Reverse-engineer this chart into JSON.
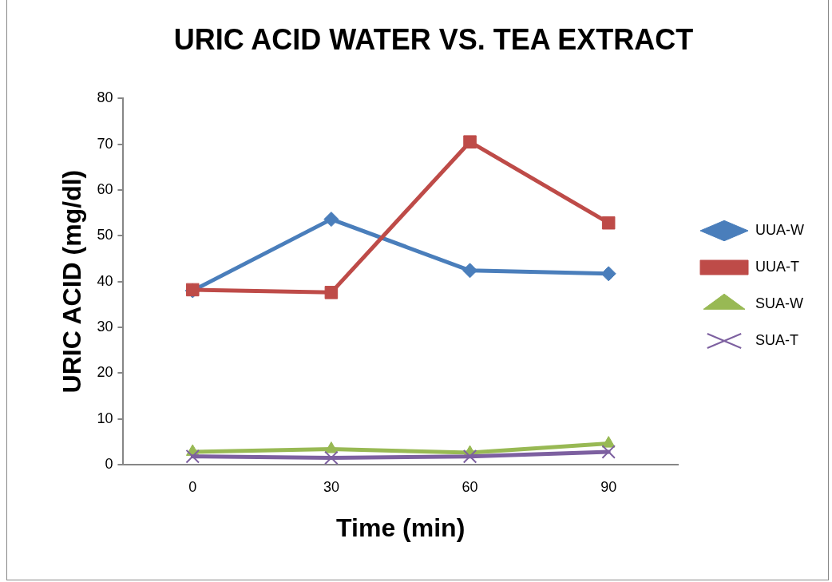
{
  "chart_data": {
    "type": "line",
    "title": "URIC ACID WATER VS. TEA EXTRACT",
    "xlabel": "Time (min)",
    "ylabel": "URIC ACID (mg/dl)",
    "categories": [
      "0",
      "30",
      "60",
      "90"
    ],
    "series": [
      {
        "name": "UUA-W",
        "color": "#4a7ebb",
        "marker": "diamond",
        "values": [
          38,
          53.6,
          42.4,
          41.7
        ]
      },
      {
        "name": "UUA-T",
        "color": "#be4b48",
        "marker": "square",
        "values": [
          38.2,
          37.6,
          70.5,
          52.8
        ]
      },
      {
        "name": "SUA-W",
        "color": "#98b954",
        "marker": "triangle",
        "values": [
          2.8,
          3.4,
          2.6,
          4.6
        ]
      },
      {
        "name": "SUA-T",
        "color": "#7d60a0",
        "marker": "cross",
        "values": [
          1.8,
          1.5,
          1.8,
          2.8
        ]
      }
    ],
    "ylim": [
      0,
      80
    ],
    "yticks": [
      0,
      10,
      20,
      30,
      40,
      50,
      60,
      70,
      80
    ],
    "grid": false,
    "legend": "right",
    "line_style": "solid"
  }
}
